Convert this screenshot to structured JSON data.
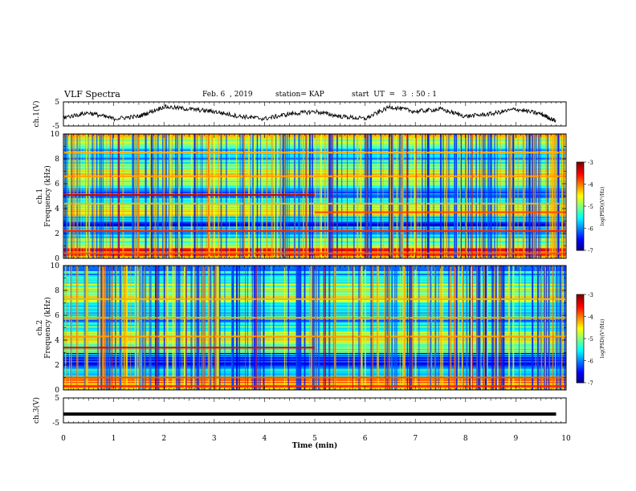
{
  "header": {
    "title": "VLF Spectra",
    "date": "Feb. 6  , 2019",
    "station": "station= KAP",
    "start": "start  UT  =   3  : 50 : 1"
  },
  "chart_data": [
    {
      "type": "line",
      "panel": "ch1-waveform",
      "ylabel": "ch.1(V)",
      "ylim": [
        -5,
        5
      ],
      "yticks": [
        "5",
        "-5"
      ],
      "xlim": [
        0,
        10
      ],
      "x": [
        0,
        0.5,
        1,
        1.5,
        2,
        2.5,
        3,
        3.5,
        4,
        4.5,
        5,
        5.5,
        6,
        6.5,
        7,
        7.5,
        8,
        8.5,
        9,
        9.5,
        9.8
      ],
      "values": [
        -1.5,
        0.5,
        -2,
        -1,
        3,
        2,
        1,
        -1,
        -2,
        0,
        1,
        -1,
        -2,
        3,
        1,
        2,
        -1,
        0,
        2,
        0,
        -3
      ]
    },
    {
      "type": "heatmap",
      "panel": "ch1-spectrogram",
      "ylabel": [
        "ch.1",
        "Frequency  (kHz)"
      ],
      "ylim": [
        0,
        10
      ],
      "yticks": [
        "0",
        "2",
        "4",
        "6",
        "8",
        "10"
      ],
      "xlim": [
        0,
        10
      ],
      "colorbar": {
        "label": "log(PSD)(V²/Hz)",
        "range": [
          -7,
          -3
        ],
        "ticks": [
          "-3",
          "-4",
          "-5",
          "-6",
          "-7"
        ]
      }
    },
    {
      "type": "heatmap",
      "panel": "ch2-spectrogram",
      "ylabel": [
        "ch.2",
        "Frequency  (kHz)"
      ],
      "ylim": [
        0,
        10
      ],
      "yticks": [
        "0",
        "2",
        "4",
        "6",
        "8",
        "10"
      ],
      "xlim": [
        0,
        10
      ],
      "colorbar": {
        "label": "log(PSD)(V²/Hz)",
        "range": [
          -7,
          -3
        ],
        "ticks": [
          "-3",
          "-4",
          "-5",
          "-6",
          "-7"
        ]
      }
    },
    {
      "type": "line",
      "panel": "ch3-waveform",
      "ylabel": "ch.3(V)",
      "ylim": [
        -5,
        5
      ],
      "yticks": [
        "5",
        "-5"
      ],
      "xlim": [
        0,
        10
      ],
      "xlabel": "Time  (min)",
      "xticks": [
        "0",
        "1",
        "2",
        "3",
        "4",
        "5",
        "6",
        "7",
        "8",
        "9",
        "10"
      ],
      "x": [
        0,
        9.8
      ],
      "values": [
        -1.5,
        -1.5
      ]
    }
  ]
}
